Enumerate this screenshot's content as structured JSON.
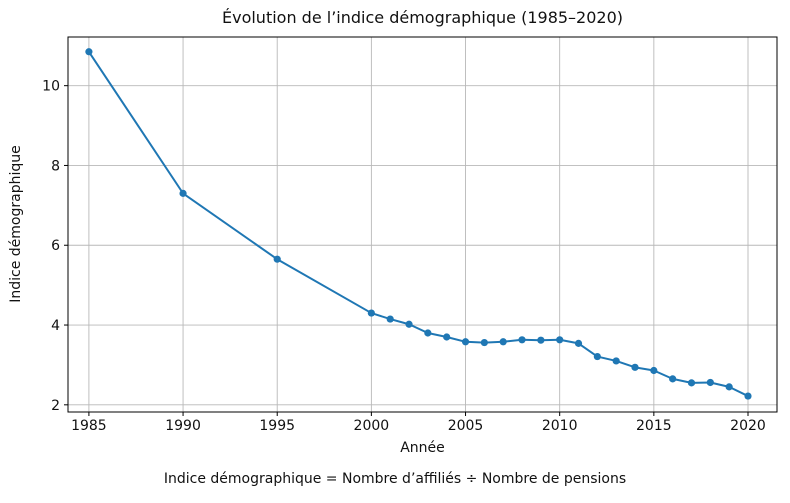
{
  "chart_data": {
    "type": "line",
    "title": "Évolution de l’indice démographique (1985–2020)",
    "xlabel": "Année",
    "ylabel": "Indice démographique",
    "caption": "Indice démographique = Nombre d’affiliés ÷ Nombre de pensions",
    "x": [
      1985,
      1990,
      1995,
      2000,
      2001,
      2002,
      2003,
      2004,
      2005,
      2006,
      2007,
      2008,
      2009,
      2010,
      2011,
      2012,
      2013,
      2014,
      2015,
      2016,
      2017,
      2018,
      2019,
      2020
    ],
    "series": [
      {
        "name": "Indice démographique",
        "values": [
          10.85,
          7.3,
          5.65,
          4.3,
          4.15,
          4.02,
          3.8,
          3.7,
          3.58,
          3.56,
          3.58,
          3.63,
          3.62,
          3.63,
          3.54,
          3.21,
          3.1,
          2.94,
          2.86,
          2.65,
          2.55,
          2.56,
          2.45,
          2.22
        ]
      }
    ],
    "x_ticks": [
      1985,
      1990,
      1995,
      2000,
      2005,
      2010,
      2015,
      2020
    ],
    "y_ticks": [
      2,
      4,
      6,
      8,
      10
    ],
    "xlim": [
      1983.89,
      2021.54
    ],
    "ylim": [
      1.82,
      11.22
    ],
    "grid": true,
    "legend_position": "none",
    "line_color": "#1f77b4",
    "marker": "circle",
    "grid_color": "#b8b8b8",
    "spine_color": "#000000",
    "background": "#ffffff"
  }
}
